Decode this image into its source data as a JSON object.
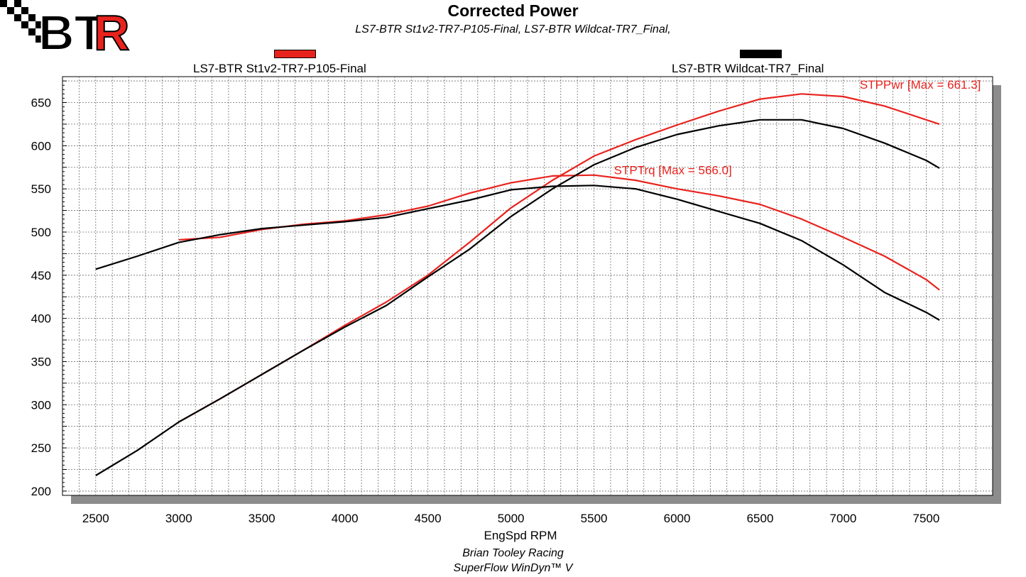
{
  "header": {
    "logo_text": "BTR",
    "title": "Corrected Power",
    "subtitle": "LS7-BTR St1v2-TR7-P105-Final, LS7-BTR Wildcat-TR7_Final,"
  },
  "legend": [
    {
      "label": "LS7-BTR St1v2-TR7-P105-Final",
      "color": "#e8231e"
    },
    {
      "label": "LS7-BTR Wildcat-TR7_Final",
      "color": "#000000"
    }
  ],
  "footer": {
    "line1": "Brian Tooley Racing",
    "line2": "SuperFlow WinDyn™ V"
  },
  "chart_data": {
    "type": "line",
    "title": "Corrected Power",
    "xlabel": "EngSpd RPM",
    "ylabel": "",
    "xlim": [
      2300,
      7900
    ],
    "ylim": [
      195,
      680
    ],
    "xticks": [
      2500,
      3000,
      3500,
      4000,
      4500,
      5000,
      5500,
      6000,
      6500,
      7000,
      7500
    ],
    "yticks": [
      200,
      250,
      300,
      350,
      400,
      450,
      500,
      550,
      600,
      650
    ],
    "grid": true,
    "annotations": [
      {
        "text": "STPPwr [Max = 661.3]",
        "x": 7100,
        "y": 666,
        "color": "#e8231e"
      },
      {
        "text": "STPTrq [Max = 566.0]",
        "x": 5620,
        "y": 567,
        "color": "#e8231e"
      }
    ],
    "series": [
      {
        "name": "LS7-BTR St1v2-TR7-P105-Final",
        "quantity": "STPPwr",
        "color": "#e8231e",
        "x": [
          3000,
          3250,
          3500,
          3750,
          4000,
          4250,
          4500,
          4750,
          5000,
          5250,
          5500,
          5750,
          6000,
          6250,
          6500,
          6750,
          7000,
          7250,
          7500,
          7580
        ],
        "y": [
          280,
          307,
          335,
          363,
          392,
          419,
          450,
          488,
          528,
          560,
          588,
          607,
          624,
          640,
          654,
          660,
          657,
          646,
          630,
          625
        ]
      },
      {
        "name": "LS7-BTR St1v2-TR7-P105-Final",
        "quantity": "STPTrq",
        "color": "#e8231e",
        "x": [
          3000,
          3250,
          3500,
          3750,
          4000,
          4250,
          4500,
          4750,
          5000,
          5250,
          5500,
          5750,
          6000,
          6250,
          6500,
          6750,
          7000,
          7250,
          7500,
          7580
        ],
        "y": [
          491,
          494,
          503,
          509,
          513,
          520,
          530,
          545,
          557,
          565,
          566,
          560,
          550,
          542,
          532,
          515,
          494,
          472,
          445,
          433
        ]
      },
      {
        "name": "LS7-BTR Wildcat-TR7_Final",
        "quantity": "STPPwr",
        "color": "#000000",
        "x": [
          2500,
          2750,
          3000,
          3250,
          3500,
          3750,
          4000,
          4250,
          4500,
          4750,
          5000,
          5250,
          5500,
          5750,
          6000,
          6250,
          6500,
          6750,
          7000,
          7250,
          7500,
          7580
        ],
        "y": [
          218,
          247,
          280,
          307,
          335,
          363,
          390,
          415,
          448,
          480,
          518,
          550,
          578,
          598,
          613,
          623,
          630,
          630,
          620,
          603,
          583,
          574
        ]
      },
      {
        "name": "LS7-BTR Wildcat-TR7_Final",
        "quantity": "STPTrq",
        "color": "#000000",
        "x": [
          2500,
          2750,
          3000,
          3250,
          3500,
          3750,
          4000,
          4250,
          4500,
          4750,
          5000,
          5250,
          5500,
          5750,
          6000,
          6250,
          6500,
          6750,
          7000,
          7250,
          7500,
          7580
        ],
        "y": [
          457,
          472,
          488,
          497,
          504,
          508,
          512,
          517,
          527,
          537,
          549,
          553,
          554,
          550,
          538,
          524,
          510,
          490,
          462,
          430,
          407,
          398
        ]
      }
    ]
  }
}
